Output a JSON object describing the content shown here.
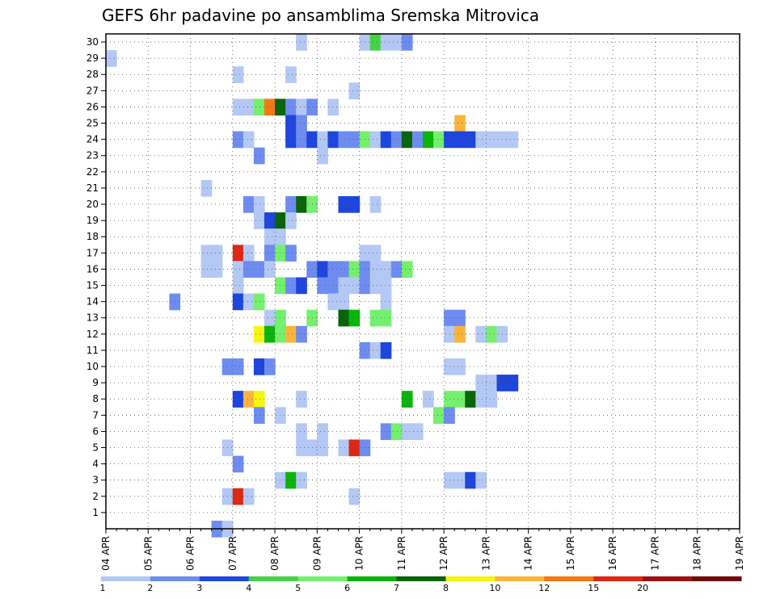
{
  "chart_data": {
    "type": "heatmap",
    "title": "GEFS 6hr padavine po ansamblima Sremska Mitrovica",
    "xlabel": "",
    "ylabel": "",
    "x_tick_labels": [
      "04 APR",
      "05 APR",
      "06 APR",
      "07 APR",
      "08 APR",
      "09 APR",
      "10 APR",
      "11 APR",
      "12 APR",
      "13 APR",
      "14 APR",
      "15 APR",
      "16 APR",
      "17 APR",
      "18 APR",
      "19 APR"
    ],
    "x_range_days": [
      0,
      15
    ],
    "step_days": 0.25,
    "y_tick_labels": [
      "1",
      "2",
      "3",
      "4",
      "5",
      "6",
      "7",
      "8",
      "9",
      "10",
      "11",
      "12",
      "13",
      "14",
      "15",
      "16",
      "17",
      "18",
      "19",
      "20",
      "21",
      "22",
      "23",
      "24",
      "25",
      "26",
      "27",
      "28",
      "29",
      "30"
    ],
    "y_range": [
      0,
      30
    ],
    "legend": {
      "levels": [
        "1",
        "2",
        "3",
        "4",
        "5",
        "6",
        "7",
        "8",
        "10",
        "12",
        "15",
        "20"
      ],
      "colors": [
        "#b4c8f5",
        "#6e8cf0",
        "#1e46dc",
        "#46d246",
        "#74f06e",
        "#0ab40a",
        "#0a640a",
        "#f5f514",
        "#fab43c",
        "#f57814",
        "#dc2814",
        "#9b1414",
        "#6e0a0a"
      ]
    },
    "cells": [
      [
        30,
        18,
        0
      ],
      [
        30,
        24,
        0
      ],
      [
        30,
        25,
        3
      ],
      [
        30,
        26,
        0
      ],
      [
        30,
        27,
        0
      ],
      [
        30,
        28,
        1
      ],
      [
        29,
        0,
        0
      ],
      [
        28,
        12,
        0
      ],
      [
        28,
        17,
        0
      ],
      [
        27,
        23,
        0
      ],
      [
        26,
        12,
        0
      ],
      [
        26,
        13,
        0
      ],
      [
        26,
        14,
        4
      ],
      [
        26,
        15,
        9
      ],
      [
        26,
        16,
        6
      ],
      [
        26,
        17,
        1
      ],
      [
        26,
        18,
        0
      ],
      [
        26,
        19,
        1
      ],
      [
        26,
        21,
        0
      ],
      [
        25,
        17,
        2
      ],
      [
        25,
        18,
        1
      ],
      [
        25,
        33,
        8
      ],
      [
        24,
        12,
        1
      ],
      [
        24,
        13,
        0
      ],
      [
        24,
        17,
        2
      ],
      [
        24,
        18,
        1
      ],
      [
        24,
        19,
        2
      ],
      [
        24,
        20,
        0
      ],
      [
        24,
        21,
        2
      ],
      [
        24,
        22,
        1
      ],
      [
        24,
        23,
        1
      ],
      [
        24,
        24,
        4
      ],
      [
        24,
        25,
        0
      ],
      [
        24,
        26,
        2
      ],
      [
        24,
        27,
        1
      ],
      [
        24,
        28,
        6
      ],
      [
        24,
        29,
        1
      ],
      [
        24,
        30,
        5
      ],
      [
        24,
        31,
        4
      ],
      [
        24,
        32,
        2
      ],
      [
        24,
        33,
        2
      ],
      [
        24,
        34,
        2
      ],
      [
        24,
        35,
        0
      ],
      [
        24,
        36,
        0
      ],
      [
        24,
        37,
        0
      ],
      [
        24,
        38,
        0
      ],
      [
        23,
        14,
        1
      ],
      [
        23,
        20,
        0
      ],
      [
        21,
        9,
        0
      ],
      [
        20,
        13,
        1
      ],
      [
        20,
        14,
        0
      ],
      [
        20,
        17,
        1
      ],
      [
        20,
        18,
        6
      ],
      [
        20,
        19,
        4
      ],
      [
        20,
        22,
        2
      ],
      [
        20,
        23,
        2
      ],
      [
        20,
        25,
        0
      ],
      [
        19,
        14,
        0
      ],
      [
        19,
        15,
        2
      ],
      [
        19,
        16,
        6
      ],
      [
        19,
        17,
        0
      ],
      [
        18,
        15,
        0
      ],
      [
        18,
        16,
        0
      ],
      [
        17,
        9,
        0
      ],
      [
        17,
        10,
        0
      ],
      [
        17,
        12,
        10
      ],
      [
        17,
        13,
        0
      ],
      [
        17,
        15,
        1
      ],
      [
        17,
        16,
        4
      ],
      [
        17,
        17,
        1
      ],
      [
        17,
        24,
        0
      ],
      [
        17,
        25,
        0
      ],
      [
        16,
        9,
        0
      ],
      [
        16,
        10,
        0
      ],
      [
        16,
        12,
        0
      ],
      [
        16,
        13,
        1
      ],
      [
        16,
        14,
        1
      ],
      [
        16,
        15,
        0
      ],
      [
        16,
        19,
        1
      ],
      [
        16,
        20,
        2
      ],
      [
        16,
        21,
        1
      ],
      [
        16,
        22,
        1
      ],
      [
        16,
        23,
        4
      ],
      [
        16,
        24,
        1
      ],
      [
        16,
        25,
        0
      ],
      [
        16,
        26,
        0
      ],
      [
        16,
        27,
        1
      ],
      [
        16,
        28,
        4
      ],
      [
        15,
        12,
        0
      ],
      [
        15,
        16,
        4
      ],
      [
        15,
        17,
        1
      ],
      [
        15,
        18,
        2
      ],
      [
        15,
        20,
        1
      ],
      [
        15,
        21,
        1
      ],
      [
        15,
        22,
        0
      ],
      [
        15,
        23,
        0
      ],
      [
        15,
        24,
        1
      ],
      [
        15,
        25,
        0
      ],
      [
        15,
        26,
        0
      ],
      [
        14,
        6,
        1
      ],
      [
        14,
        12,
        2
      ],
      [
        14,
        13,
        0
      ],
      [
        14,
        14,
        4
      ],
      [
        14,
        21,
        0
      ],
      [
        14,
        22,
        0
      ],
      [
        14,
        26,
        0
      ],
      [
        13,
        15,
        0
      ],
      [
        13,
        16,
        4
      ],
      [
        13,
        19,
        4
      ],
      [
        13,
        22,
        6
      ],
      [
        13,
        23,
        5
      ],
      [
        13,
        25,
        4
      ],
      [
        13,
        26,
        4
      ],
      [
        13,
        32,
        1
      ],
      [
        13,
        33,
        1
      ],
      [
        12,
        14,
        7
      ],
      [
        12,
        15,
        5
      ],
      [
        12,
        16,
        4
      ],
      [
        12,
        17,
        8
      ],
      [
        12,
        18,
        1
      ],
      [
        12,
        32,
        0
      ],
      [
        12,
        33,
        8
      ],
      [
        12,
        35,
        0
      ],
      [
        12,
        36,
        4
      ],
      [
        12,
        37,
        0
      ],
      [
        11,
        24,
        1
      ],
      [
        11,
        25,
        0
      ],
      [
        11,
        26,
        2
      ],
      [
        10,
        11,
        1
      ],
      [
        10,
        12,
        1
      ],
      [
        10,
        14,
        2
      ],
      [
        10,
        15,
        1
      ],
      [
        10,
        32,
        0
      ],
      [
        10,
        33,
        0
      ],
      [
        9,
        35,
        0
      ],
      [
        9,
        36,
        0
      ],
      [
        9,
        37,
        2
      ],
      [
        9,
        38,
        2
      ],
      [
        8,
        12,
        2
      ],
      [
        8,
        13,
        8
      ],
      [
        8,
        14,
        7
      ],
      [
        8,
        18,
        0
      ],
      [
        8,
        28,
        5
      ],
      [
        8,
        30,
        0
      ],
      [
        8,
        32,
        4
      ],
      [
        8,
        33,
        4
      ],
      [
        8,
        34,
        6
      ],
      [
        8,
        35,
        0
      ],
      [
        8,
        36,
        0
      ],
      [
        7,
        14,
        1
      ],
      [
        7,
        16,
        0
      ],
      [
        7,
        31,
        4
      ],
      [
        7,
        32,
        1
      ],
      [
        6,
        18,
        0
      ],
      [
        6,
        20,
        0
      ],
      [
        6,
        26,
        1
      ],
      [
        6,
        27,
        4
      ],
      [
        6,
        28,
        0
      ],
      [
        6,
        29,
        0
      ],
      [
        5,
        11,
        0
      ],
      [
        5,
        18,
        0
      ],
      [
        5,
        19,
        0
      ],
      [
        5,
        20,
        0
      ],
      [
        5,
        22,
        0
      ],
      [
        5,
        23,
        10
      ],
      [
        5,
        24,
        1
      ],
      [
        4,
        12,
        1
      ],
      [
        3,
        16,
        0
      ],
      [
        3,
        17,
        5
      ],
      [
        3,
        18,
        0
      ],
      [
        3,
        32,
        0
      ],
      [
        3,
        33,
        0
      ],
      [
        3,
        34,
        2
      ],
      [
        3,
        35,
        0
      ],
      [
        2,
        11,
        0
      ],
      [
        2,
        12,
        10
      ],
      [
        2,
        13,
        0
      ],
      [
        2,
        23,
        0
      ],
      [
        0,
        10,
        1
      ],
      [
        0,
        11,
        0
      ]
    ]
  }
}
